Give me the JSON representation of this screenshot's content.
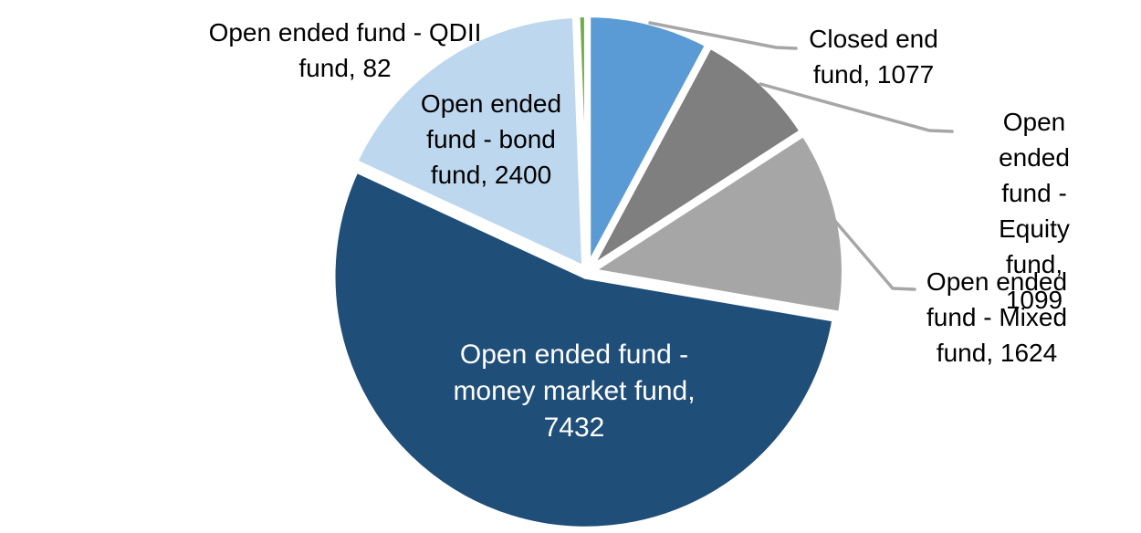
{
  "chart_data": {
    "type": "pie",
    "title": "",
    "legend": "none",
    "background": "#FFFFFF",
    "direction": "clockwise",
    "start_angle_deg": 0,
    "total": 13714,
    "leader_line_color": "#A6A6A6",
    "slices": [
      {
        "label": "Closed end fund",
        "value": 1077,
        "color": "#5B9BD5",
        "callout": "Closed end\nfund, 1077",
        "callout_placement": "outside-top-right",
        "has_leader_line": true
      },
      {
        "label": "Open ended fund - Equity fund",
        "value": 1099,
        "color": "#7F7F7F",
        "callout": "Open ended\nfund - Equity\nfund, 1099",
        "callout_placement": "outside-right",
        "has_leader_line": true
      },
      {
        "label": "Open ended fund - Mixed fund",
        "value": 1624,
        "color": "#A6A6A6",
        "callout": "Open ended\nfund - Mixed\nfund, 1624",
        "callout_placement": "outside-right",
        "has_leader_line": true
      },
      {
        "label": "Open ended fund - money market fund",
        "value": 7432,
        "color": "#1F4E79",
        "callout": "Open ended fund -\nmoney market fund,\n7432",
        "callout_placement": "inside",
        "has_leader_line": false
      },
      {
        "label": "Open ended fund - bond fund",
        "value": 2400,
        "color": "#BDD7EE",
        "callout": "Open ended\nfund - bond\nfund, 2400",
        "callout_placement": "inside-top",
        "has_leader_line": false
      },
      {
        "label": "Open ended fund - QDII fund",
        "value": 82,
        "color": "#70AD47",
        "callout": "Open ended fund - QDII\nfund, 82",
        "callout_placement": "outside-top-left",
        "has_leader_line": false
      }
    ]
  }
}
